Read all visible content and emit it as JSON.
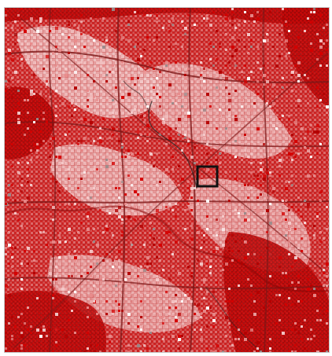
{
  "map": {
    "tile_colors": {
      "dark": "#b30000",
      "mid": "#d40000",
      "light": "#e88a8a",
      "pale": "#f5caca",
      "white": "#ffffff",
      "gray": "#9a8a8a"
    },
    "roads_color": "#7a1010",
    "selection_box_color": "#111111"
  }
}
